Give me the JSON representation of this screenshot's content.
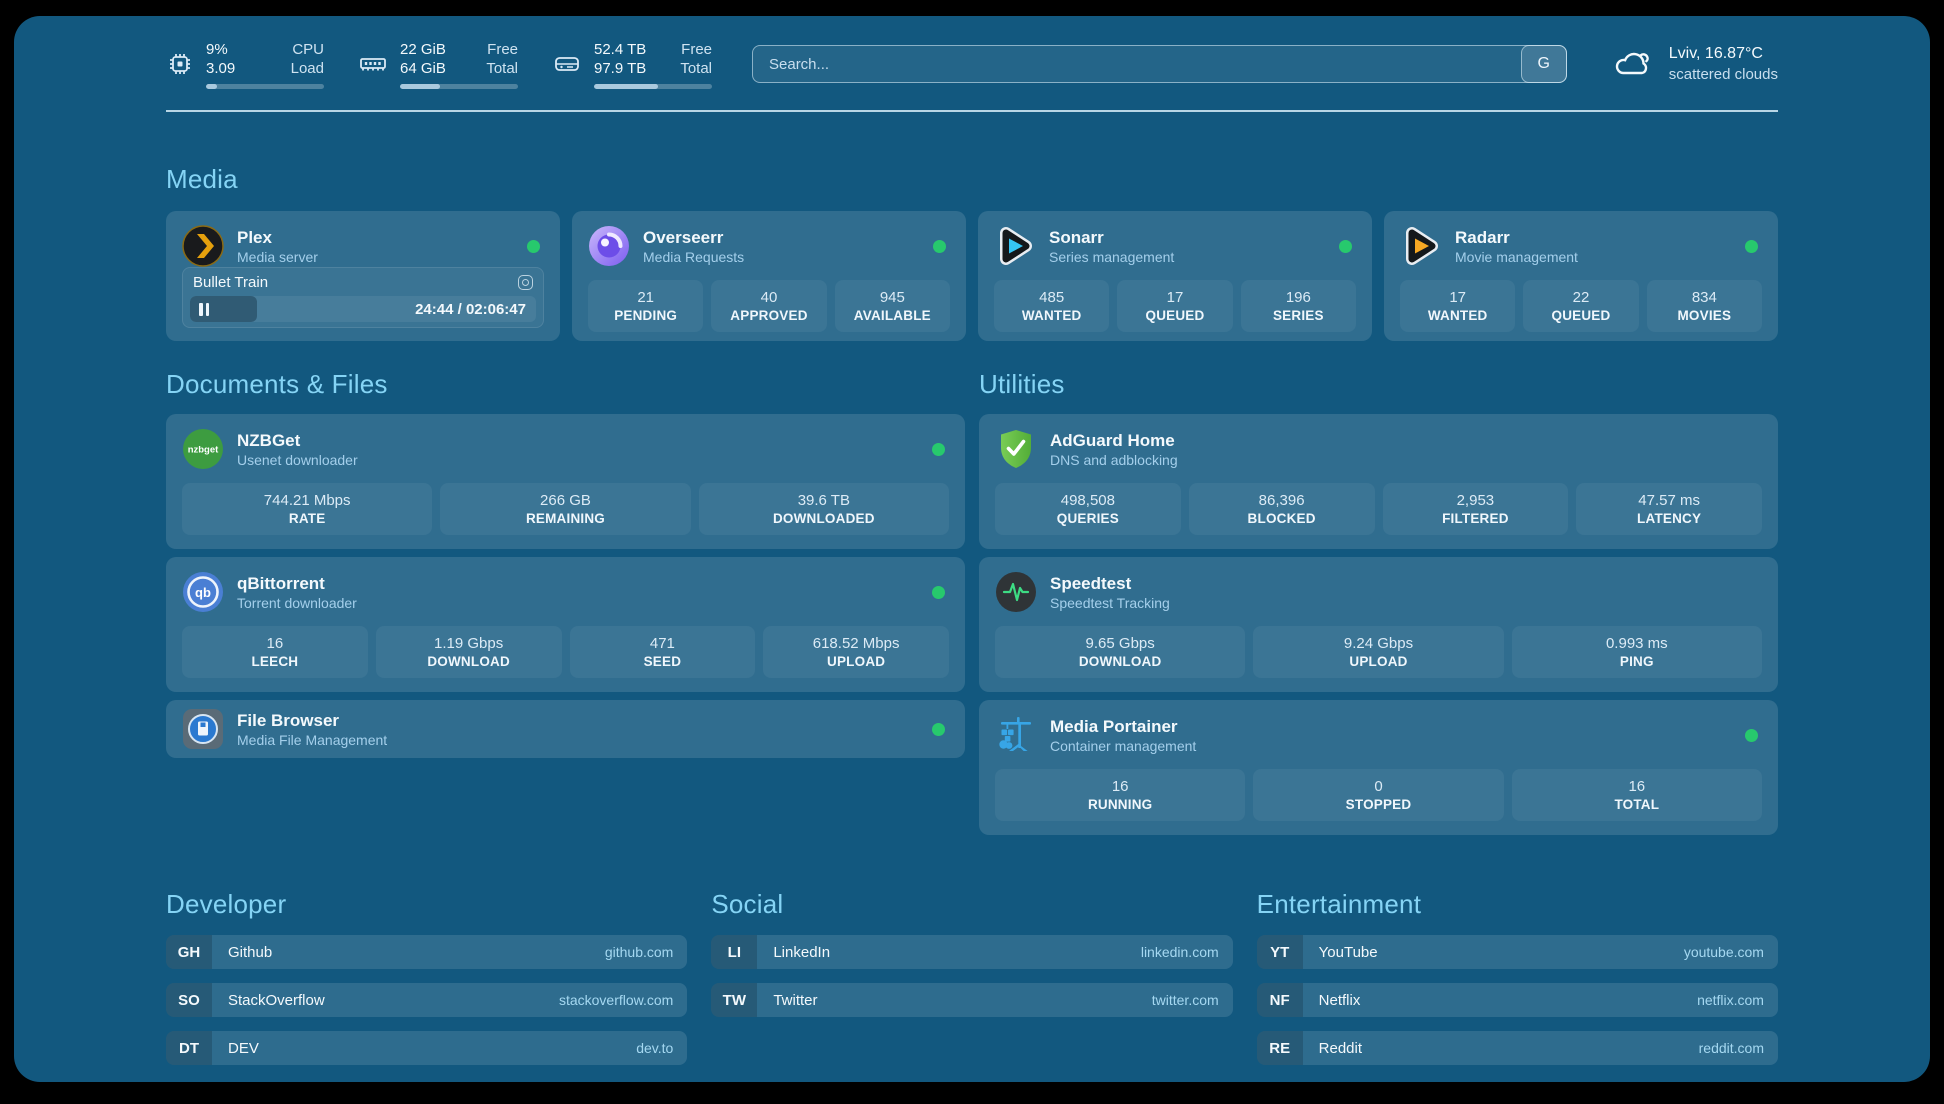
{
  "header": {
    "system_stats": [
      {
        "icon": "cpu-icon",
        "values": [
          "9%",
          "3.09"
        ],
        "labels": [
          "CPU",
          "Load"
        ],
        "progress_pct": 9
      },
      {
        "icon": "memory-icon",
        "values": [
          "22 GiB",
          "64 GiB"
        ],
        "labels": [
          "Free",
          "Total"
        ],
        "progress_pct": 34
      },
      {
        "icon": "disk-icon",
        "values": [
          "52.4 TB",
          "97.9 TB"
        ],
        "labels": [
          "Free",
          "Total"
        ],
        "progress_pct": 54
      }
    ],
    "search": {
      "placeholder": "Search...",
      "engine_button": "G"
    },
    "weather": {
      "icon": "cloud-icon",
      "location": "Lviv, 16.87°C",
      "condition": "scattered clouds"
    }
  },
  "media": {
    "title": "Media",
    "plex": {
      "icon": "plex-icon",
      "name": "Plex",
      "subtitle": "Media server",
      "status": "online",
      "session": {
        "title": "Bullet Train",
        "time_display": "24:44 / 02:06:47",
        "progress_pct": 19.5
      }
    },
    "overseerr": {
      "icon": "overseerr-icon",
      "name": "Overseerr",
      "subtitle": "Media Requests",
      "status": "online",
      "stats": [
        {
          "value": "21",
          "label": "PENDING"
        },
        {
          "value": "40",
          "label": "APPROVED"
        },
        {
          "value": "945",
          "label": "AVAILABLE"
        }
      ]
    },
    "sonarr": {
      "icon": "sonarr-icon",
      "name": "Sonarr",
      "subtitle": "Series management",
      "status": "online",
      "stats": [
        {
          "value": "485",
          "label": "WANTED"
        },
        {
          "value": "17",
          "label": "QUEUED"
        },
        {
          "value": "196",
          "label": "SERIES"
        }
      ]
    },
    "radarr": {
      "icon": "radarr-icon",
      "name": "Radarr",
      "subtitle": "Movie management",
      "status": "online",
      "stats": [
        {
          "value": "17",
          "label": "WANTED"
        },
        {
          "value": "22",
          "label": "QUEUED"
        },
        {
          "value": "834",
          "label": "MOVIES"
        }
      ]
    }
  },
  "documents": {
    "title": "Documents & Files",
    "nzbget": {
      "icon": "nzbget-icon",
      "logo_text": "nzbget",
      "name": "NZBGet",
      "subtitle": "Usenet downloader",
      "status": "online",
      "stats": [
        {
          "value": "744.21 Mbps",
          "label": "RATE"
        },
        {
          "value": "266 GB",
          "label": "REMAINING"
        },
        {
          "value": "39.6 TB",
          "label": "DOWNLOADED"
        }
      ]
    },
    "qbittorrent": {
      "icon": "qbittorrent-icon",
      "logo_text": "qb",
      "name": "qBittorrent",
      "subtitle": "Torrent downloader",
      "status": "online",
      "stats": [
        {
          "value": "16",
          "label": "LEECH"
        },
        {
          "value": "1.19 Gbps",
          "label": "DOWNLOAD"
        },
        {
          "value": "471",
          "label": "SEED"
        },
        {
          "value": "618.52 Mbps",
          "label": "UPLOAD"
        }
      ]
    },
    "filebrowser": {
      "icon": "filebrowser-icon",
      "name": "File Browser",
      "subtitle": "Media File Management",
      "status": "online"
    }
  },
  "utilities": {
    "title": "Utilities",
    "adguard": {
      "icon": "adguard-icon",
      "name": "AdGuard Home",
      "subtitle": "DNS and adblocking",
      "stats": [
        {
          "value": "498,508",
          "label": "QUERIES"
        },
        {
          "value": "86,396",
          "label": "BLOCKED"
        },
        {
          "value": "2,953",
          "label": "FILTERED"
        },
        {
          "value": "47.57 ms",
          "label": "LATENCY"
        }
      ]
    },
    "speedtest": {
      "icon": "speedtest-icon",
      "name": "Speedtest",
      "subtitle": "Speedtest Tracking",
      "stats": [
        {
          "value": "9.65 Gbps",
          "label": "DOWNLOAD"
        },
        {
          "value": "9.24 Gbps",
          "label": "UPLOAD"
        },
        {
          "value": "0.993 ms",
          "label": "PING"
        }
      ]
    },
    "portainer": {
      "icon": "portainer-icon",
      "name": "Media Portainer",
      "subtitle": "Container management",
      "status": "online",
      "stats": [
        {
          "value": "16",
          "label": "RUNNING"
        },
        {
          "value": "0",
          "label": "STOPPED"
        },
        {
          "value": "16",
          "label": "TOTAL"
        }
      ]
    }
  },
  "bookmarks": [
    {
      "title": "Developer",
      "items": [
        {
          "abbr": "GH",
          "name": "Github",
          "url": "github.com"
        },
        {
          "abbr": "SO",
          "name": "StackOverflow",
          "url": "stackoverflow.com"
        },
        {
          "abbr": "DT",
          "name": "DEV",
          "url": "dev.to"
        }
      ]
    },
    {
      "title": "Social",
      "items": [
        {
          "abbr": "LI",
          "name": "LinkedIn",
          "url": "linkedin.com"
        },
        {
          "abbr": "TW",
          "name": "Twitter",
          "url": "twitter.com"
        }
      ]
    },
    {
      "title": "Entertainment",
      "items": [
        {
          "abbr": "YT",
          "name": "YouTube",
          "url": "youtube.com"
        },
        {
          "abbr": "NF",
          "name": "Netflix",
          "url": "netflix.com"
        },
        {
          "abbr": "RE",
          "name": "Reddit",
          "url": "reddit.com"
        }
      ]
    }
  ],
  "colors": {
    "status_online": "#27c96d",
    "accent": "#85d4f5",
    "background": "#12587f"
  }
}
